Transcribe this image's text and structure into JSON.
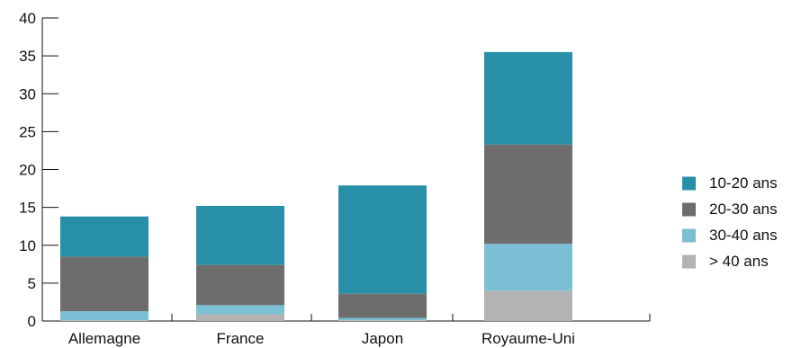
{
  "chart_data": {
    "type": "bar",
    "stacked": true,
    "title": "",
    "xlabel": "",
    "ylabel": "",
    "categories": [
      "Allemagne",
      "France",
      "Japon",
      "Royaume-Uni"
    ],
    "ylim": [
      0,
      40
    ],
    "yticks": [
      0,
      5,
      10,
      15,
      20,
      25,
      30,
      35,
      40
    ],
    "legend_position": "right",
    "grid": false,
    "series": [
      {
        "name": "> 40 ans",
        "color": "#b3b3b3",
        "values": [
          0.1,
          0.9,
          0.1,
          4.0
        ]
      },
      {
        "name": "30-40 ans",
        "color": "#7bbfd4",
        "values": [
          1.2,
          1.2,
          0.3,
          6.2
        ]
      },
      {
        "name": "20-30 ans",
        "color": "#6d6d6d",
        "values": [
          7.2,
          5.3,
          3.2,
          13.1
        ]
      },
      {
        "name": "10-20 ans",
        "color": "#2790a8",
        "values": [
          5.3,
          7.8,
          14.3,
          12.2
        ]
      }
    ],
    "legend_order": [
      "10-20 ans",
      "20-30 ans",
      "30-40 ans",
      "> 40 ans"
    ]
  }
}
